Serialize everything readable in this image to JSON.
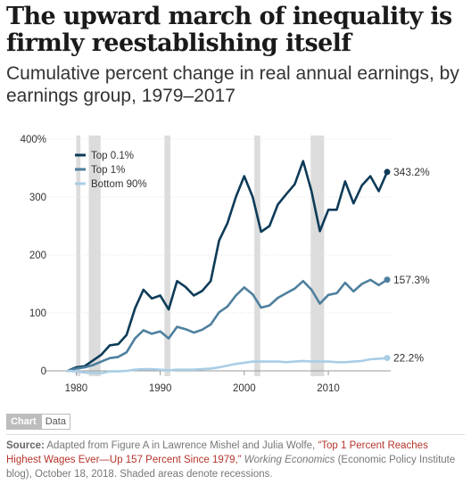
{
  "header": {
    "title": "The upward march of inequality is firmly reestablishing itself",
    "subtitle": "Cumulative percent change in real annual earnings, by earnings group, 1979–2017"
  },
  "tabs": {
    "chart_label": "Chart",
    "data_label": "Data"
  },
  "source": {
    "label": "Source:",
    "text_before": " Adapted from Figure A in Lawrence Mishel and Julia Wolfe, ",
    "link": "“Top 1 Percent Reaches Highest Wages Ever—Up 157 Percent Since 1979,”",
    "publication": "Working Economics",
    "text_after": " (Economic Policy Institute blog), October 18, 2018. Shaded areas denote recessions."
  },
  "colors": {
    "top01": "#0d3b58",
    "top1": "#4e7f9e",
    "bottom90": "#a9cde6",
    "recession": "#dcdcdc",
    "grid": "#e0e0e0"
  },
  "chart_data": {
    "type": "line",
    "xlabel": "",
    "ylabel": "",
    "xlim": [
      1979,
      2017
    ],
    "ylim": [
      0,
      400
    ],
    "yticks": [
      0,
      100,
      200,
      300,
      400
    ],
    "ytick_labels": [
      "0",
      "100",
      "200",
      "300",
      "400%"
    ],
    "xticks": [
      1980,
      1990,
      2000,
      2010
    ],
    "xtick_labels": [
      "1980",
      "1990",
      "2000",
      "2010"
    ],
    "grid": "horizontal dotted",
    "legend": "top-left",
    "recessions": [
      [
        1980.0,
        1980.5
      ],
      [
        1981.5,
        1982.9
      ],
      [
        1990.5,
        1991.2
      ],
      [
        2001.2,
        2001.9
      ],
      [
        2007.9,
        2009.5
      ]
    ],
    "x": [
      1979,
      1980,
      1981,
      1982,
      1983,
      1984,
      1985,
      1986,
      1987,
      1988,
      1989,
      1990,
      1991,
      1992,
      1993,
      1994,
      1995,
      1996,
      1997,
      1998,
      1999,
      2000,
      2001,
      2002,
      2003,
      2004,
      2005,
      2006,
      2007,
      2008,
      2009,
      2010,
      2011,
      2012,
      2013,
      2014,
      2015,
      2016,
      2017
    ],
    "series": [
      {
        "name": "Top 0.1%",
        "end_label": "343.2%",
        "values": [
          0,
          6,
          8,
          18,
          28,
          44,
          46,
          62,
          108,
          140,
          125,
          130,
          106,
          155,
          145,
          130,
          138,
          155,
          225,
          255,
          300,
          336,
          300,
          240,
          250,
          287,
          305,
          322,
          362,
          310,
          241,
          278,
          278,
          327,
          289,
          320,
          336,
          310,
          343.2
        ]
      },
      {
        "name": "Top 1%",
        "end_label": "157.3%",
        "values": [
          0,
          4,
          6,
          10,
          16,
          22,
          24,
          32,
          56,
          70,
          64,
          68,
          56,
          76,
          72,
          66,
          71,
          80,
          101,
          111,
          130,
          144,
          132,
          109,
          113,
          126,
          134,
          142,
          155,
          140,
          116,
          131,
          134,
          152,
          137,
          150,
          157,
          148,
          157.3
        ]
      },
      {
        "name": "Bottom 90%",
        "end_label": "22.2%",
        "values": [
          0,
          -1,
          -3,
          -4,
          -4,
          -1,
          -1,
          0,
          2,
          3,
          3,
          2,
          1,
          2,
          2,
          2,
          3,
          4,
          6,
          9,
          12,
          14,
          16,
          16,
          16,
          16,
          15,
          16,
          17,
          16,
          16,
          16,
          15,
          15,
          16,
          17,
          20,
          21,
          22.2
        ]
      }
    ]
  }
}
